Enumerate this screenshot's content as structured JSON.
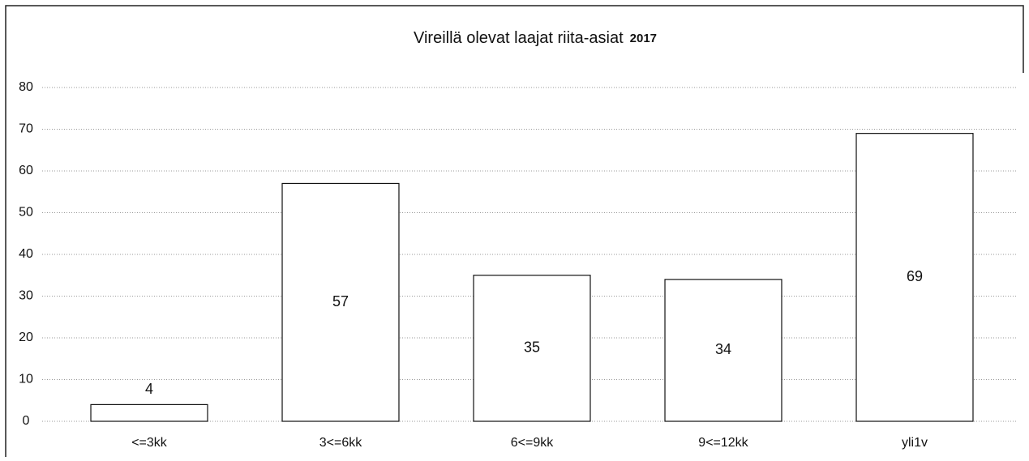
{
  "chart_data": {
    "type": "bar",
    "title": "Vireillä olevat laajat riita-asiat",
    "subtitle": "2017",
    "categories": [
      "<=3kk",
      "3<=6kk",
      "6<=9kk",
      "9<=12kk",
      "yli1v"
    ],
    "values": [
      4,
      57,
      35,
      34,
      69
    ],
    "color": "#ffffff",
    "ylim": [
      0,
      80
    ],
    "yticks": [
      0,
      10,
      20,
      30,
      40,
      50,
      60,
      70,
      80
    ],
    "grid": true
  }
}
